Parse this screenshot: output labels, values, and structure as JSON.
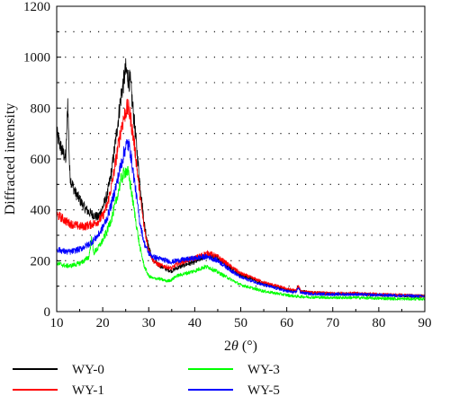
{
  "chart_data": {
    "type": "line",
    "xlabel_prefix": "2",
    "xlabel_theta": "θ",
    "xlabel_suffix": " (°)",
    "ylabel": "Diffracted intensity",
    "xlim": [
      10,
      90
    ],
    "ylim": [
      0,
      1200
    ],
    "x_ticks": [
      "10",
      "20",
      "30",
      "40",
      "50",
      "60",
      "70",
      "80",
      "90"
    ],
    "y_ticks": [
      "0",
      "200",
      "400",
      "600",
      "800",
      "1000",
      "1200"
    ],
    "grid": "horizontal dotted",
    "legend_position": "bottom, two columns",
    "series": [
      {
        "name": "WY-0",
        "color": "#000000",
        "x": [
          10,
          11,
          12,
          12.4,
          12.8,
          13,
          14,
          15,
          16,
          17,
          18,
          19,
          20,
          21,
          22,
          23,
          24,
          25,
          25.5,
          26,
          27,
          28,
          29,
          30,
          31,
          32,
          33,
          34,
          35,
          36,
          38,
          40,
          42,
          43,
          45,
          48,
          50,
          55,
          60,
          62,
          62.5,
          63,
          65,
          70,
          75,
          80,
          85,
          90
        ],
        "y": [
          700,
          640,
          600,
          830,
          560,
          520,
          470,
          440,
          410,
          390,
          380,
          370,
          410,
          460,
          560,
          700,
          850,
          950,
          920,
          900,
          720,
          520,
          350,
          250,
          200,
          185,
          175,
          165,
          160,
          170,
          185,
          195,
          215,
          220,
          210,
          170,
          145,
          110,
          85,
          80,
          100,
          80,
          75,
          70,
          70,
          65,
          62,
          60
        ]
      },
      {
        "name": "WY-1",
        "color": "#ff0000",
        "x": [
          10,
          11,
          12,
          13,
          14,
          15,
          16,
          17,
          18,
          19,
          20,
          21,
          22,
          23,
          24,
          25,
          25.5,
          26,
          27,
          28,
          29,
          30,
          31,
          32,
          33,
          34,
          35,
          36,
          38,
          40,
          42,
          43,
          45,
          48,
          50,
          55,
          60,
          62,
          62.5,
          63,
          65,
          70,
          75,
          80,
          85,
          90
        ],
        "y": [
          380,
          370,
          355,
          345,
          340,
          335,
          335,
          340,
          345,
          355,
          375,
          420,
          500,
          610,
          720,
          790,
          800,
          770,
          640,
          470,
          330,
          240,
          200,
          185,
          180,
          175,
          170,
          185,
          200,
          210,
          225,
          230,
          215,
          175,
          150,
          115,
          90,
          82,
          100,
          82,
          75,
          72,
          72,
          68,
          65,
          62
        ]
      },
      {
        "name": "WY-3",
        "color": "#00ff00",
        "x": [
          10,
          11,
          12,
          13,
          14,
          15,
          16,
          17,
          17.6,
          18,
          19,
          20,
          21,
          22,
          23,
          24,
          25,
          25.5,
          26,
          27,
          28,
          29,
          30,
          31,
          32,
          33,
          34,
          35,
          36,
          38,
          40,
          42,
          43,
          45,
          48,
          50,
          55,
          60,
          62,
          65,
          70,
          75,
          80,
          85,
          90
        ],
        "y": [
          190,
          185,
          180,
          180,
          185,
          190,
          200,
          215,
          290,
          230,
          250,
          280,
          320,
          370,
          440,
          520,
          555,
          545,
          500,
          380,
          260,
          180,
          140,
          130,
          130,
          125,
          120,
          125,
          140,
          150,
          160,
          175,
          175,
          155,
          125,
          105,
          80,
          65,
          60,
          57,
          55,
          55,
          52,
          50,
          50
        ]
      },
      {
        "name": "WY-5",
        "color": "#0000ff",
        "x": [
          10,
          11,
          12,
          13,
          14,
          15,
          16,
          17,
          18,
          19,
          20,
          21,
          22,
          23,
          24,
          25,
          25.5,
          26,
          27,
          28,
          29,
          30,
          31,
          32,
          33,
          34,
          35,
          36,
          38,
          40,
          42,
          43,
          45,
          48,
          50,
          55,
          60,
          62,
          62.5,
          63,
          65,
          70,
          75,
          80,
          85,
          90
        ],
        "y": [
          245,
          240,
          235,
          235,
          240,
          245,
          255,
          265,
          280,
          300,
          330,
          370,
          430,
          500,
          580,
          650,
          660,
          630,
          500,
          360,
          270,
          230,
          215,
          210,
          205,
          200,
          195,
          200,
          205,
          210,
          215,
          215,
          200,
          160,
          135,
          105,
          80,
          75,
          95,
          75,
          70,
          68,
          68,
          65,
          63,
          60
        ]
      }
    ]
  }
}
